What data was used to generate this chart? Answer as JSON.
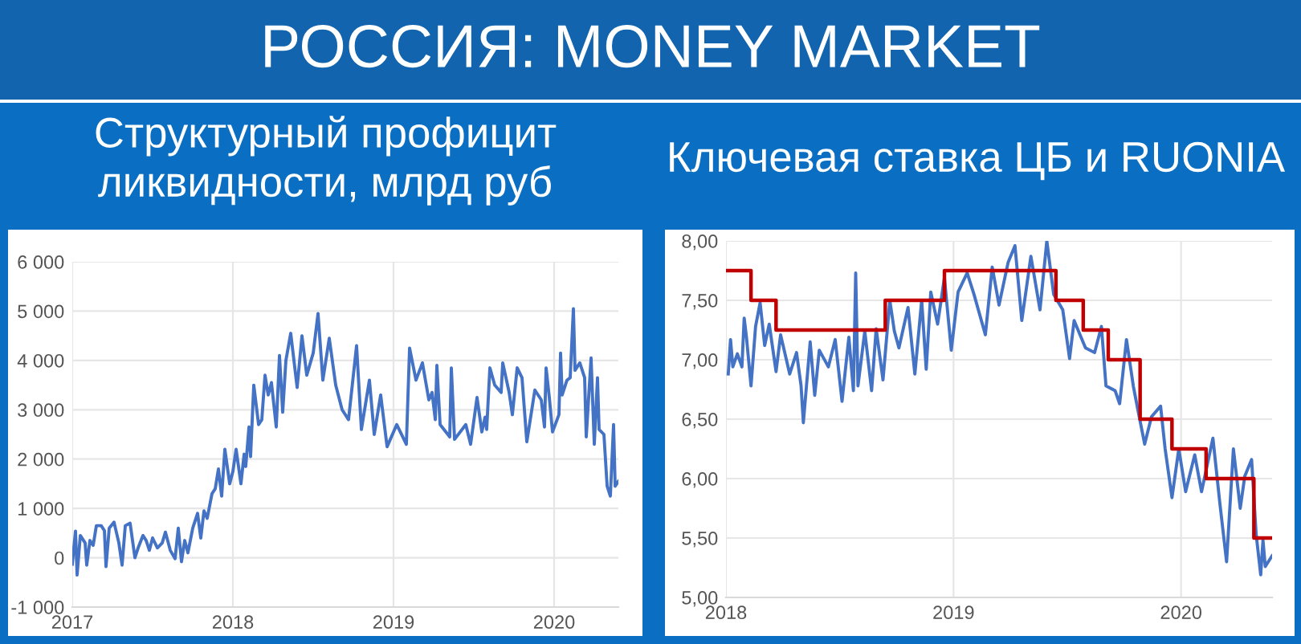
{
  "chart_data": [
    {
      "type": "line",
      "title": "Структурный профицит ликвидности, млрд руб",
      "annotations": [
        "РОССИЯ: MONEY MARKET"
      ],
      "grid": true,
      "xlim": [
        2017.0,
        2020.4
      ],
      "xticks": [
        2017,
        2018,
        2019,
        2020
      ],
      "ylim": [
        -1000,
        6000
      ],
      "yticks": [
        {
          "value": -1000,
          "label": "-1 000"
        },
        0,
        {
          "value": 1000,
          "label": "1 000"
        },
        {
          "value": 2000,
          "label": "2 000"
        },
        {
          "value": 3000,
          "label": "3 000"
        },
        {
          "value": 4000,
          "label": "4 000"
        },
        {
          "value": 5000,
          "label": "5 000"
        },
        {
          "value": 6000,
          "label": "6 000"
        }
      ],
      "series": [
        {
          "color": "#4472c4",
          "x": [
            2017.0,
            2017.02,
            2017.03,
            2017.05,
            2017.08,
            2017.09,
            2017.11,
            2017.13,
            2017.15,
            2017.18,
            2017.2,
            2017.21,
            2017.23,
            2017.26,
            2017.29,
            2017.31,
            2017.33,
            2017.36,
            2017.39,
            2017.41,
            2017.44,
            2017.46,
            2017.48,
            2017.5,
            2017.53,
            2017.56,
            2017.58,
            2017.61,
            2017.64,
            2017.66,
            2017.68,
            2017.7,
            2017.72,
            2017.75,
            2017.78,
            2017.8,
            2017.82,
            2017.84,
            2017.87,
            2017.89,
            2017.91,
            2017.93,
            2017.95,
            2017.98,
            2018.0,
            2018.02,
            2018.05,
            2018.07,
            2018.08,
            2018.1,
            2018.11,
            2018.13,
            2018.16,
            2018.18,
            2018.2,
            2018.22,
            2018.24,
            2018.27,
            2018.29,
            2018.31,
            2018.33,
            2018.36,
            2018.4,
            2018.43,
            2018.46,
            2018.5,
            2018.53,
            2018.56,
            2018.6,
            2018.64,
            2018.68,
            2018.72,
            2018.77,
            2018.8,
            2018.85,
            2018.88,
            2018.92,
            2018.96,
            2019.02,
            2019.08,
            2019.1,
            2019.14,
            2019.18,
            2019.22,
            2019.24,
            2019.26,
            2019.27,
            2019.29,
            2019.35,
            2019.36,
            2019.38,
            2019.45,
            2019.48,
            2019.52,
            2019.55,
            2019.57,
            2019.58,
            2019.6,
            2019.63,
            2019.67,
            2019.68,
            2019.72,
            2019.74,
            2019.77,
            2019.8,
            2019.83,
            2019.88,
            2019.92,
            2019.94,
            2019.95,
            2019.97,
            2019.99,
            2020.03,
            2020.04,
            2020.05,
            2020.08,
            2020.1,
            2020.12,
            2020.13,
            2020.16,
            2020.19,
            2020.2,
            2020.23,
            2020.25,
            2020.27,
            2020.28,
            2020.31,
            2020.33,
            2020.35,
            2020.37,
            2020.38,
            2020.4
          ],
          "values": [
            -130,
            540,
            -350,
            450,
            300,
            -150,
            350,
            250,
            650,
            650,
            550,
            -180,
            600,
            720,
            300,
            -150,
            650,
            700,
            0,
            200,
            450,
            350,
            150,
            400,
            200,
            300,
            520,
            150,
            -20,
            600,
            -80,
            350,
            100,
            600,
            900,
            400,
            950,
            800,
            1300,
            1400,
            1800,
            1250,
            2200,
            1500,
            1750,
            2200,
            1500,
            2100,
            1850,
            2650,
            2050,
            3500,
            2700,
            2800,
            3700,
            3300,
            3550,
            2650,
            4100,
            2950,
            4000,
            4550,
            3450,
            4500,
            3700,
            4150,
            4950,
            3600,
            4450,
            3500,
            3000,
            2800,
            4300,
            2600,
            3600,
            2500,
            3300,
            2250,
            2700,
            2300,
            4250,
            3600,
            3950,
            3200,
            3350,
            2800,
            3900,
            2700,
            2450,
            3850,
            2400,
            2700,
            2300,
            3250,
            2550,
            2850,
            2600,
            3850,
            3500,
            3350,
            3950,
            3350,
            2900,
            3850,
            3650,
            2350,
            3400,
            3200,
            2650,
            3850,
            3250,
            2550,
            2900,
            4150,
            3300,
            3600,
            3650,
            5050,
            3800,
            3950,
            3650,
            2450,
            4050,
            2300,
            3650,
            2600,
            2500,
            1450,
            1250,
            2700,
            1450,
            1550
          ]
        }
      ]
    },
    {
      "type": "line",
      "title": "Ключевая ставка ЦБ и RUONIA",
      "grid": true,
      "xlim": [
        2018.0,
        2020.4
      ],
      "xticks": [
        2018,
        2019,
        2020
      ],
      "ylim": [
        5.0,
        8.0
      ],
      "yticks": [
        {
          "value": 5.0,
          "label": "5,00"
        },
        {
          "value": 5.5,
          "label": "5,50"
        },
        {
          "value": 6.0,
          "label": "6,00"
        },
        {
          "value": 6.5,
          "label": "6,50"
        },
        {
          "value": 7.0,
          "label": "7,00"
        },
        {
          "value": 7.5,
          "label": "7,50"
        },
        {
          "value": 8.0,
          "label": "8,00"
        }
      ],
      "series": [
        {
          "color": "#4472c4",
          "x": [
            2018.01,
            2018.02,
            2018.03,
            2018.05,
            2018.07,
            2018.08,
            2018.09,
            2018.11,
            2018.13,
            2018.15,
            2018.17,
            2018.19,
            2018.22,
            2018.24,
            2018.28,
            2018.31,
            2018.33,
            2018.34,
            2018.37,
            2018.39,
            2018.41,
            2018.45,
            2018.48,
            2018.51,
            2018.54,
            2018.56,
            2018.57,
            2018.58,
            2018.61,
            2018.64,
            2018.66,
            2018.69,
            2018.72,
            2018.74,
            2018.76,
            2018.8,
            2018.83,
            2018.86,
            2018.88,
            2018.9,
            2018.93,
            2018.96,
            2018.99,
            2019.02,
            2019.06,
            2019.09,
            2019.14,
            2019.17,
            2019.2,
            2019.24,
            2019.27,
            2019.3,
            2019.34,
            2019.38,
            2019.41,
            2019.44,
            2019.48,
            2019.51,
            2019.53,
            2019.58,
            2019.62,
            2019.65,
            2019.67,
            2019.71,
            2019.73,
            2019.76,
            2019.79,
            2019.81,
            2019.84,
            2019.87,
            2019.91,
            2019.93,
            2019.96,
            2019.99,
            2020.02,
            2020.06,
            2020.09,
            2020.14,
            2020.17,
            2020.2,
            2020.23,
            2020.26,
            2020.28,
            2020.31,
            2020.33,
            2020.35,
            2020.36,
            2020.37,
            2020.4
          ],
          "values": [
            6.88,
            7.17,
            6.94,
            7.05,
            6.94,
            7.35,
            7.19,
            6.78,
            7.28,
            7.48,
            7.12,
            7.3,
            6.9,
            7.21,
            6.88,
            7.06,
            6.78,
            6.47,
            7.15,
            6.7,
            7.08,
            6.94,
            7.17,
            6.65,
            7.19,
            6.74,
            7.73,
            6.78,
            7.24,
            6.74,
            7.26,
            6.83,
            7.5,
            7.24,
            7.1,
            7.44,
            6.88,
            7.5,
            6.92,
            7.57,
            7.3,
            7.69,
            7.08,
            7.57,
            7.73,
            7.55,
            7.21,
            7.78,
            7.46,
            7.82,
            7.96,
            7.33,
            7.87,
            7.42,
            8.0,
            7.55,
            7.42,
            7.01,
            7.33,
            7.1,
            7.06,
            7.28,
            6.78,
            6.74,
            6.63,
            7.17,
            6.78,
            6.58,
            6.29,
            6.52,
            6.61,
            6.25,
            5.84,
            6.25,
            5.89,
            6.2,
            5.89,
            6.34,
            5.8,
            5.3,
            6.25,
            5.75,
            6.02,
            6.16,
            5.53,
            5.19,
            5.48,
            5.26,
            5.35
          ]
        },
        {
          "type": "step",
          "color": "#c00000",
          "x": [
            2018.0,
            2018.11,
            2018.22,
            2018.7,
            2018.96,
            2019.45,
            2019.57,
            2019.68,
            2019.82,
            2019.96,
            2020.11,
            2020.32,
            2020.4
          ],
          "values": [
            7.75,
            7.5,
            7.25,
            7.5,
            7.75,
            7.5,
            7.25,
            7.0,
            6.5,
            6.25,
            6.0,
            5.5,
            5.5
          ]
        }
      ]
    }
  ]
}
